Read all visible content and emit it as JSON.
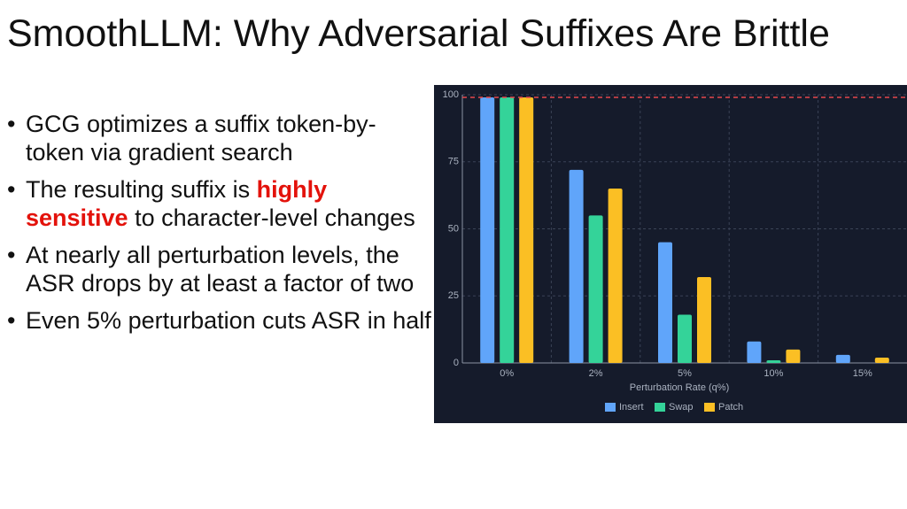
{
  "title": "SmoothLLM: Why Adversarial Suffixes Are Brittle",
  "bullets": [
    [
      {
        "text": "GCG optimizes a suffix token-by-token via gradient search"
      }
    ],
    [
      {
        "text": "The resulting suffix is "
      },
      {
        "text": "highly sensitive",
        "emphasis": true
      },
      {
        "text": " to character-level changes"
      }
    ],
    [
      {
        "text": "At nearly all perturbation levels, the ASR drops by at least a factor of two"
      }
    ],
    [
      {
        "text": "Even 5% perturbation cuts ASR in half"
      }
    ]
  ],
  "chart_data": {
    "type": "bar",
    "x_label": "Perturbation Rate (q%)",
    "categories": [
      "0%",
      "2%",
      "5%",
      "10%",
      "15%"
    ],
    "series": [
      {
        "name": "Insert",
        "color": "#60a5fa",
        "values": [
          99,
          72,
          45,
          8,
          3
        ]
      },
      {
        "name": "Swap",
        "color": "#34d399",
        "values": [
          99,
          55,
          18,
          1,
          0
        ]
      },
      {
        "name": "Patch",
        "color": "#fbbf24",
        "values": [
          99,
          65,
          32,
          5,
          2
        ]
      }
    ],
    "ylim": [
      0,
      100
    ],
    "yticks": [
      0,
      25,
      50,
      75,
      100
    ],
    "grid": true,
    "reference_line": 99,
    "reference_color": "#e5484d",
    "legend": "bottom"
  }
}
